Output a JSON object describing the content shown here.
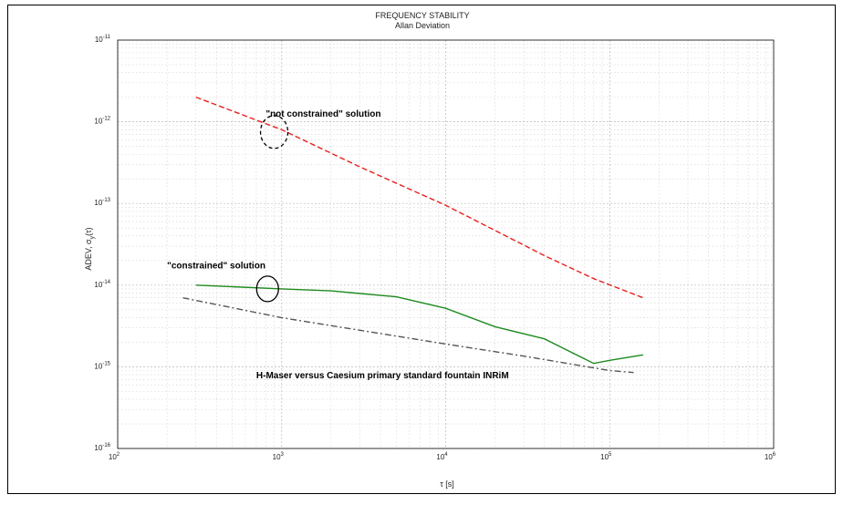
{
  "chart_data": {
    "type": "line",
    "title": "FREQUENCY STABILITY",
    "subtitle": "Allan Deviation",
    "xlabel": "τ  [s]",
    "ylabel": "ADEV, σ",
    "ylabel_sub": "y",
    "ylabel_tail": "(τ)",
    "x_scale": "log",
    "y_scale": "log",
    "xlim": [
      100,
      1000000
    ],
    "ylim": [
      1e-16,
      1e-11
    ],
    "grid": true,
    "x_ticks": [
      {
        "base": "10",
        "exp": "2",
        "value": 100
      },
      {
        "base": "10",
        "exp": "3",
        "value": 1000
      },
      {
        "base": "10",
        "exp": "4",
        "value": 10000
      },
      {
        "base": "10",
        "exp": "5",
        "value": 100000
      },
      {
        "base": "10",
        "exp": "6",
        "value": 1000000
      }
    ],
    "y_ticks": [
      {
        "base": "10",
        "exp": "-11",
        "value": 1e-11
      },
      {
        "base": "10",
        "exp": "-12",
        "value": 1e-12
      },
      {
        "base": "10",
        "exp": "-13",
        "value": 1e-13
      },
      {
        "base": "10",
        "exp": "-14",
        "value": 1e-14
      },
      {
        "base": "10",
        "exp": "-15",
        "value": 1e-15
      },
      {
        "base": "10",
        "exp": "-16",
        "value": 1e-16
      }
    ],
    "series": [
      {
        "color": "#e8201c",
        "dash": "dashed",
        "x": [
          300,
          1000,
          3000,
          10000,
          40000,
          80000,
          160000
        ],
        "y": [
          2e-12,
          8e-13,
          2.8e-13,
          9.5e-14,
          2.3e-14,
          1.2e-14,
          7e-15
        ]
      },
      {
        "color": "#1e8a1e",
        "dash": "solid",
        "x": [
          300,
          1000,
          2000,
          5000,
          10000,
          20000,
          40000,
          80000,
          100000,
          160000
        ],
        "y": [
          1e-14,
          9e-15,
          8.5e-15,
          7.2e-15,
          5.2e-15,
          3.1e-15,
          2.2e-15,
          1.1e-15,
          1.2e-15,
          1.4e-15
        ]
      },
      {
        "color": "#555555",
        "dash": "dashdot",
        "x": [
          250,
          1000,
          3000,
          10000,
          30000,
          100000,
          140000
        ],
        "y": [
          7e-15,
          4e-15,
          2.8e-15,
          1.9e-15,
          1.35e-15,
          9e-16,
          8.5e-16
        ]
      }
    ],
    "annotations": [
      {
        "text": "\"not constrained\" solution",
        "x": 800,
        "y": 1.15e-12
      },
      {
        "text": "\"constrained\" solution",
        "x": 200,
        "y": 1.6e-14
      },
      {
        "text": "H-Maser versus Caesium primary standard fountain INRiM",
        "x": 700,
        "y": 7.2e-16
      }
    ],
    "markers": [
      {
        "shape": "dashed-ellipse",
        "x": 900,
        "y": 7.5e-13
      },
      {
        "shape": "solid-ellipse",
        "x": 820,
        "y": 9e-15
      }
    ]
  }
}
